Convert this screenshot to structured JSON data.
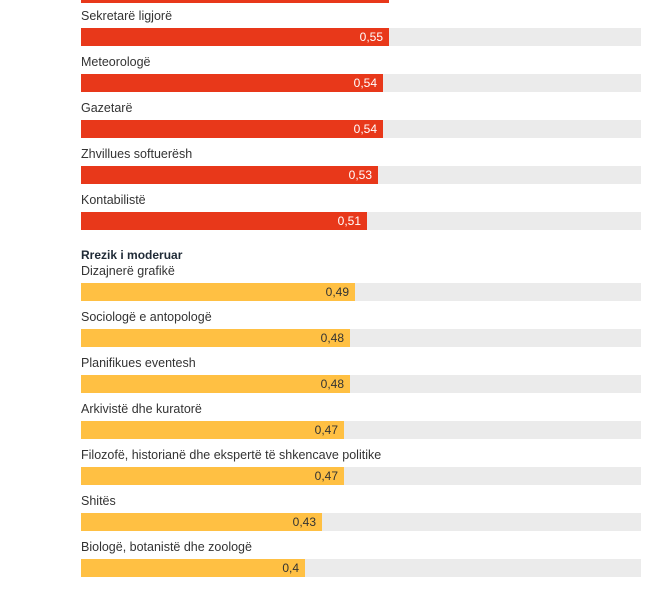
{
  "colors": {
    "high": "#e8381a",
    "moderate": "#ffc043",
    "track": "#ebebeb"
  },
  "sections": [
    {
      "heading": "",
      "color": "#e8381a",
      "value_text_color": "#ffffff",
      "items": [
        {
          "label": "Sekretarë ligjorë",
          "value": 0.55,
          "value_text": "0,55"
        },
        {
          "label": "Meteorologë",
          "value": 0.54,
          "value_text": "0,54"
        },
        {
          "label": "Gazetarë",
          "value": 0.54,
          "value_text": "0,54"
        },
        {
          "label": "Zhvillues softuerësh",
          "value": 0.53,
          "value_text": "0,53"
        },
        {
          "label": "Kontabilistë",
          "value": 0.51,
          "value_text": "0,51"
        }
      ]
    },
    {
      "heading": "Rrezik i moderuar",
      "color": "#ffc043",
      "value_text_color": "#333333",
      "items": [
        {
          "label": "Dizajnerë grafikë",
          "value": 0.49,
          "value_text": "0,49"
        },
        {
          "label": "Sociologë e antopologë",
          "value": 0.48,
          "value_text": "0,48"
        },
        {
          "label": "Planifikues eventesh",
          "value": 0.48,
          "value_text": "0,48"
        },
        {
          "label": "Arkivistë dhe kuratorë",
          "value": 0.47,
          "value_text": "0,47"
        },
        {
          "label": "Filozofë, historianë dhe ekspertë të shkencave politike",
          "value": 0.47,
          "value_text": "0,47"
        },
        {
          "label": "Shitës",
          "value": 0.43,
          "value_text": "0,43"
        },
        {
          "label": "Biologë, botanistë dhe zoologë",
          "value": 0.4,
          "value_text": "0,4"
        }
      ]
    }
  ],
  "chart_data": {
    "type": "bar",
    "orientation": "horizontal",
    "categories": [
      "Sekretarë ligjorë",
      "Meteorologë",
      "Gazetarë",
      "Zhvillues softuerësh",
      "Kontabilistë",
      "Dizajnerë grafikë",
      "Sociologë e antopologë",
      "Planifikues eventesh",
      "Arkivistë dhe kuratorë",
      "Filozofë, historianë dhe ekspertë të shkencave politike",
      "Shitës",
      "Biologë, botanistë dhe zoologë"
    ],
    "values": [
      0.55,
      0.54,
      0.54,
      0.53,
      0.51,
      0.49,
      0.48,
      0.48,
      0.47,
      0.47,
      0.43,
      0.4
    ],
    "groups": [
      "",
      "",
      "",
      "",
      "",
      "Rrezik i moderuar",
      "Rrezik i moderuar",
      "Rrezik i moderuar",
      "Rrezik i moderuar",
      "Rrezik i moderuar",
      "Rrezik i moderuar",
      "Rrezik i moderuar"
    ],
    "xlim": [
      0,
      1
    ],
    "grid": false
  }
}
